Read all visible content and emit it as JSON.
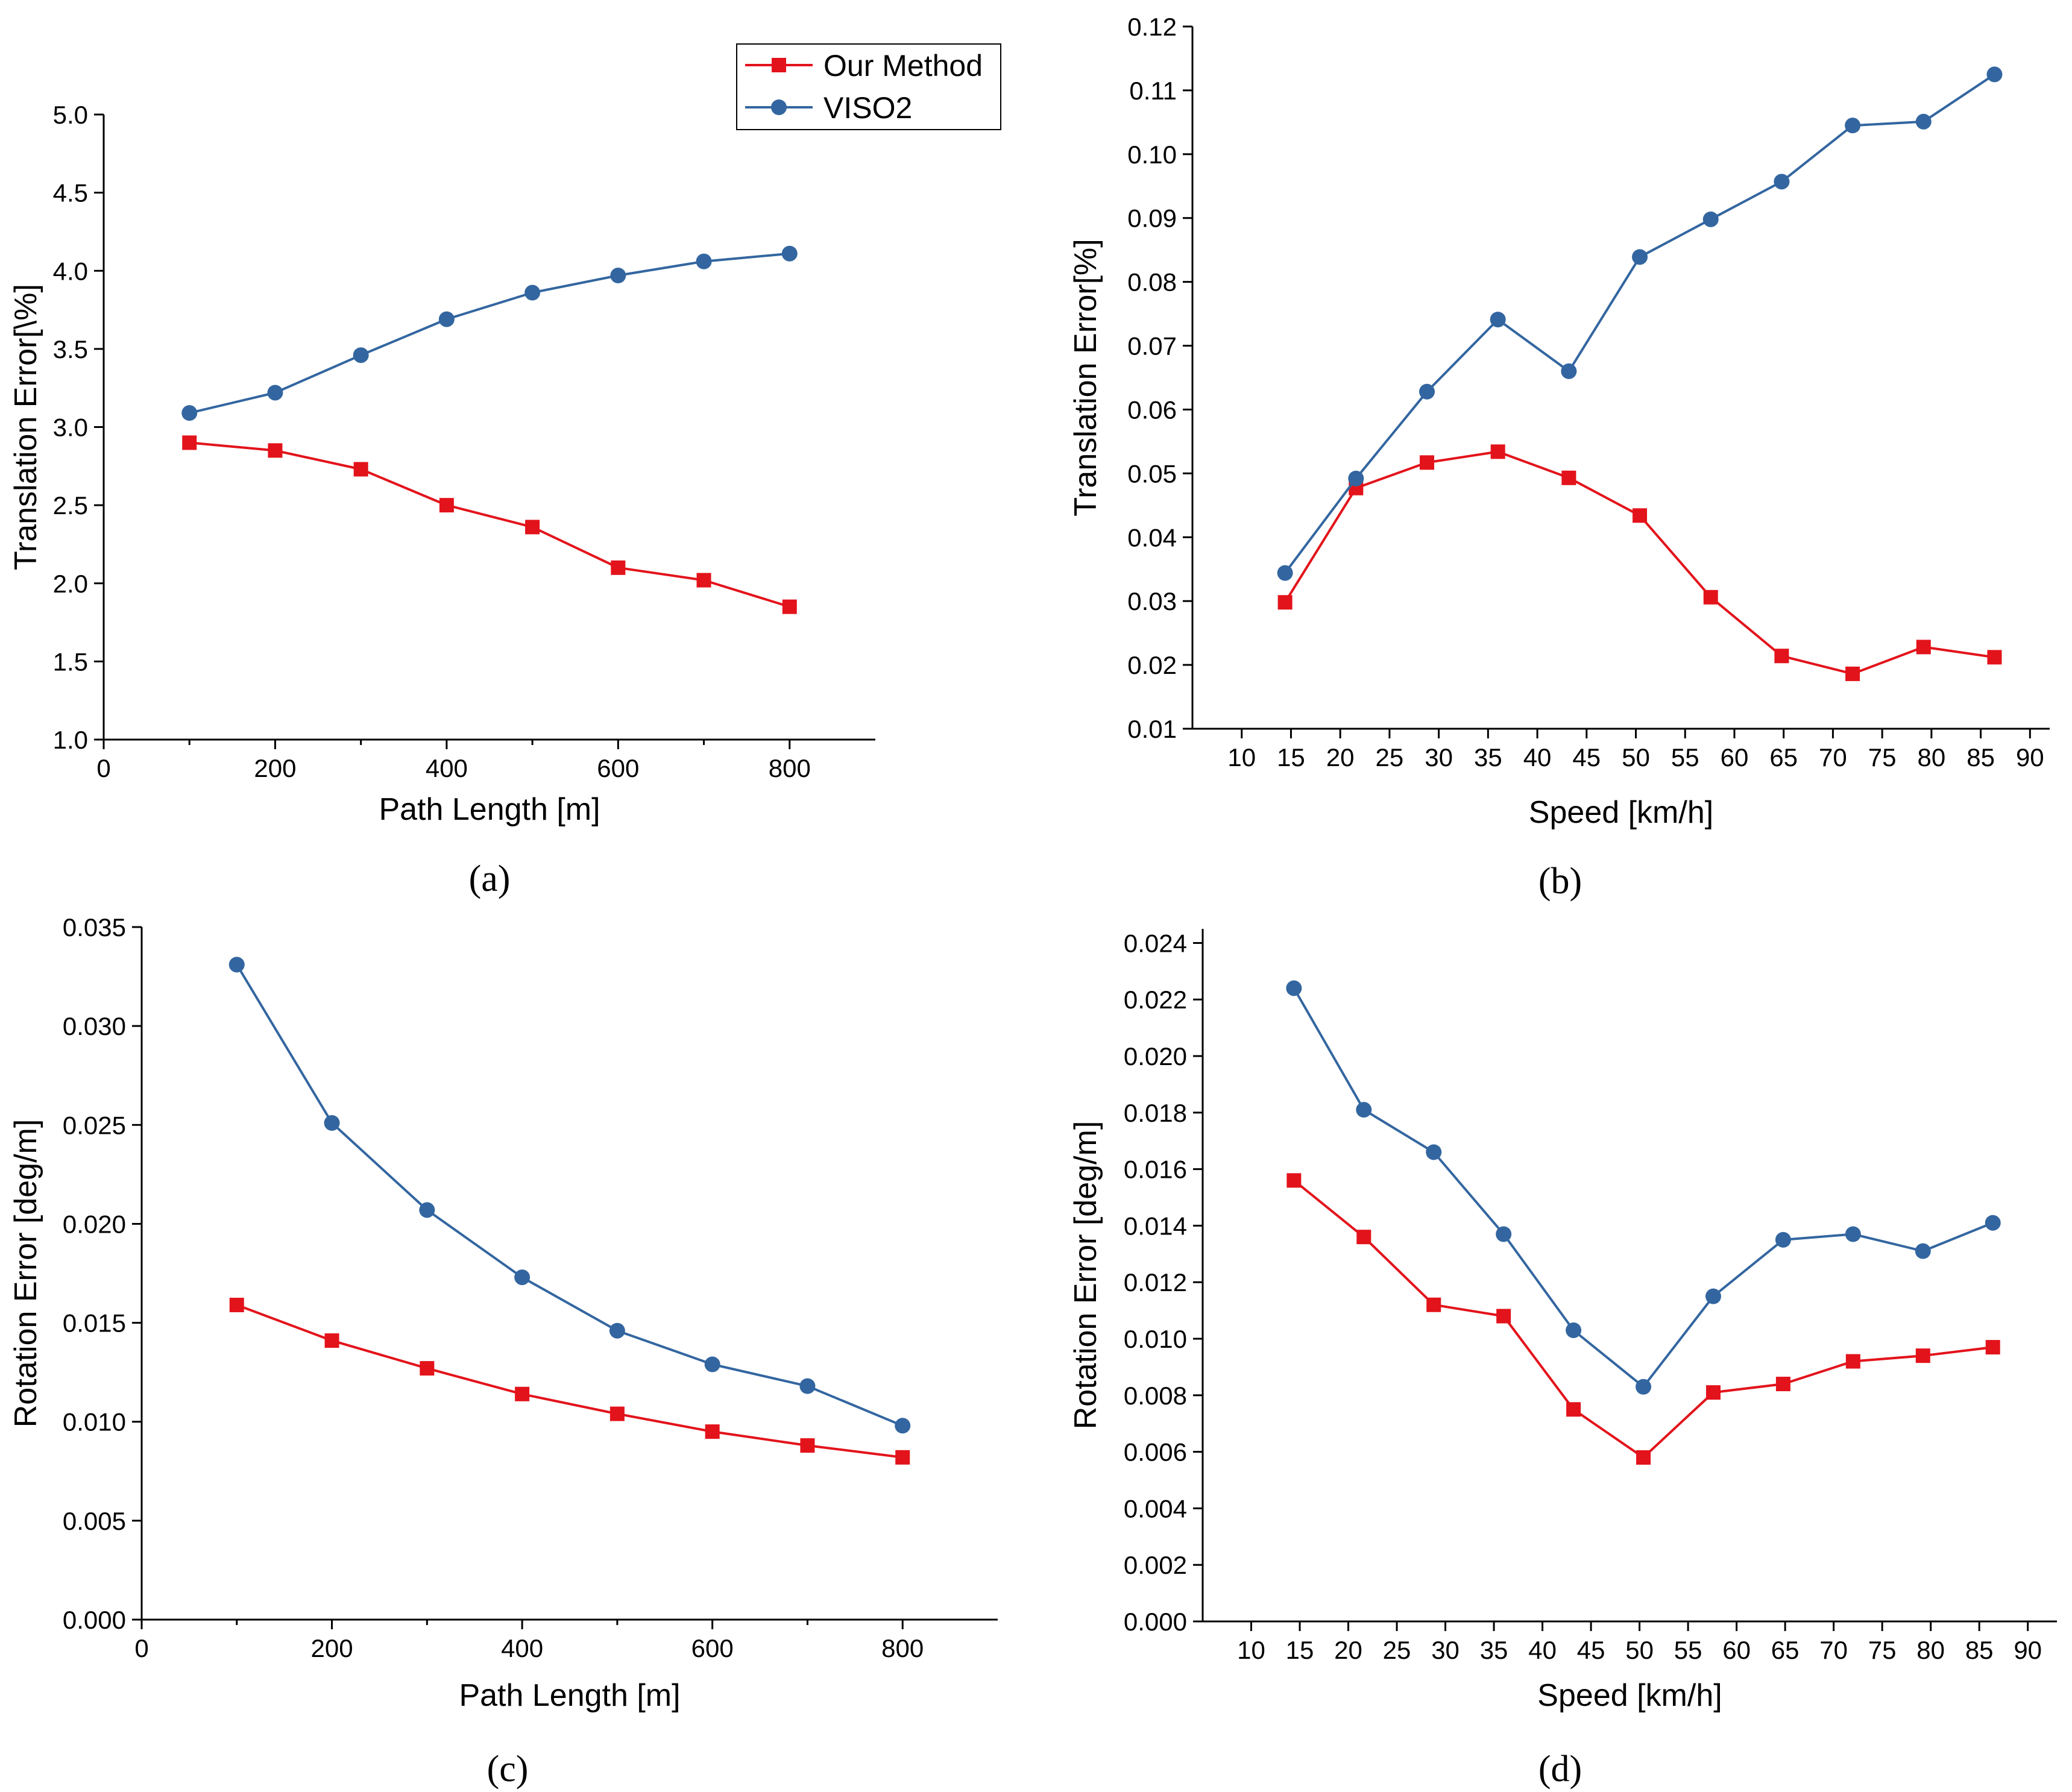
{
  "colors": {
    "series_ours": "#e3131b",
    "series_viso2": "#3366a0",
    "axis": "#000000"
  },
  "legend": {
    "entries": [
      "Our Method",
      "VISO2"
    ]
  },
  "chart_data": [
    {
      "panel": "a",
      "type": "line",
      "caption": "(a)",
      "xlabel": "Path Length [m]",
      "ylabel": "Translation Error[\\%]",
      "xlim": [
        0,
        900
      ],
      "ylim": [
        1.0,
        5.0
      ],
      "xticks": [
        0,
        200,
        400,
        600,
        800
      ],
      "xtick_labels": [
        "0",
        "200",
        "400",
        "600",
        "800"
      ],
      "xminor": [
        100,
        300,
        500,
        700
      ],
      "yticks": [
        1.0,
        1.5,
        2.0,
        2.5,
        3.0,
        3.5,
        4.0,
        4.5,
        5.0
      ],
      "ytick_labels": [
        "1.0",
        "1.5",
        "2.0",
        "2.5",
        "3.0",
        "3.5",
        "4.0",
        "4.5",
        "5.0"
      ],
      "x": [
        100,
        200,
        300,
        400,
        500,
        600,
        700,
        800
      ],
      "series": [
        {
          "name": "Our Method",
          "marker": "square",
          "values": [
            2.9,
            2.85,
            2.73,
            2.5,
            2.36,
            2.1,
            2.02,
            1.85
          ]
        },
        {
          "name": "VISO2",
          "marker": "circle",
          "values": [
            3.09,
            3.22,
            3.46,
            3.69,
            3.86,
            3.97,
            4.06,
            4.11
          ]
        }
      ]
    },
    {
      "panel": "b",
      "type": "line",
      "caption": "(b)",
      "xlabel": "Speed [km/h]",
      "ylabel": "Translation Error[%]",
      "xlim": [
        5,
        92
      ],
      "ylim": [
        0.01,
        0.12
      ],
      "xticks": [
        10,
        15,
        20,
        25,
        30,
        35,
        40,
        45,
        50,
        55,
        60,
        65,
        70,
        75,
        80,
        85,
        90
      ],
      "xtick_labels": [
        "10",
        "15",
        "20",
        "25",
        "30",
        "35",
        "40",
        "45",
        "50",
        "55",
        "60",
        "65",
        "70",
        "75",
        "80",
        "85",
        "90"
      ],
      "xminor": [],
      "yticks": [
        0.01,
        0.02,
        0.03,
        0.04,
        0.05,
        0.06,
        0.07,
        0.08,
        0.09,
        0.1,
        0.11,
        0.12
      ],
      "ytick_labels": [
        "0.01",
        "0.02",
        "0.03",
        "0.04",
        "0.05",
        "0.06",
        "0.07",
        "0.08",
        "0.09",
        "0.10",
        "0.11",
        "0.12"
      ],
      "x": [
        14.4,
        21.6,
        28.8,
        36.0,
        43.2,
        50.4,
        57.6,
        64.8,
        72.0,
        79.2,
        86.4
      ],
      "series": [
        {
          "name": "Our Method",
          "marker": "square",
          "values": [
            0.0298,
            0.0477,
            0.0517,
            0.0534,
            0.0493,
            0.0434,
            0.0306,
            0.0214,
            0.0186,
            0.0228,
            0.0212
          ]
        },
        {
          "name": "VISO2",
          "marker": "circle",
          "values": [
            0.0344,
            0.0492,
            0.0628,
            0.0741,
            0.066,
            0.0839,
            0.0898,
            0.0957,
            0.1045,
            0.1051,
            0.1125
          ]
        }
      ]
    },
    {
      "panel": "c",
      "type": "line",
      "caption": "(c)",
      "xlabel": "Path Length [m]",
      "ylabel": "Rotation Error [deg/m]",
      "xlim": [
        0,
        900
      ],
      "ylim": [
        0.0,
        0.035
      ],
      "xticks": [
        0,
        200,
        400,
        600,
        800
      ],
      "xtick_labels": [
        "0",
        "200",
        "400",
        "600",
        "800"
      ],
      "xminor": [
        100,
        300,
        500,
        700
      ],
      "yticks": [
        0.0,
        0.005,
        0.01,
        0.015,
        0.02,
        0.025,
        0.03,
        0.035
      ],
      "ytick_labels": [
        "0.000",
        "0.005",
        "0.010",
        "0.015",
        "0.020",
        "0.025",
        "0.030",
        "0.035"
      ],
      "x": [
        100,
        200,
        300,
        400,
        500,
        600,
        700,
        800
      ],
      "series": [
        {
          "name": "Our Method",
          "marker": "square",
          "values": [
            0.0159,
            0.0141,
            0.0127,
            0.0114,
            0.0104,
            0.0095,
            0.0088,
            0.0082
          ]
        },
        {
          "name": "VISO2",
          "marker": "circle",
          "values": [
            0.0331,
            0.0251,
            0.0207,
            0.0173,
            0.0146,
            0.0129,
            0.0118,
            0.0098
          ]
        }
      ]
    },
    {
      "panel": "d",
      "type": "line",
      "caption": "(d)",
      "xlabel": "Speed [km/h]",
      "ylabel": "Rotation Error [deg/m]",
      "xlim": [
        5,
        93
      ],
      "ylim": [
        0.0,
        0.0245
      ],
      "xticks": [
        10,
        15,
        20,
        25,
        30,
        35,
        40,
        45,
        50,
        55,
        60,
        65,
        70,
        75,
        80,
        85,
        90
      ],
      "xtick_labels": [
        "10",
        "15",
        "20",
        "25",
        "30",
        "35",
        "40",
        "45",
        "50",
        "55",
        "60",
        "65",
        "70",
        "75",
        "80",
        "85",
        "90"
      ],
      "xminor": [],
      "yticks": [
        0.0,
        0.002,
        0.004,
        0.006,
        0.008,
        0.01,
        0.012,
        0.014,
        0.016,
        0.018,
        0.02,
        0.022,
        0.024
      ],
      "ytick_labels": [
        "0.000",
        "0.002",
        "0.004",
        "0.006",
        "0.008",
        "0.010",
        "0.012",
        "0.014",
        "0.016",
        "0.018",
        "0.020",
        "0.022",
        "0.024"
      ],
      "x": [
        14.4,
        21.6,
        28.8,
        36.0,
        43.2,
        50.4,
        57.6,
        64.8,
        72.0,
        79.2,
        86.4
      ],
      "series": [
        {
          "name": "Our Method",
          "marker": "square",
          "values": [
            0.0156,
            0.0136,
            0.0112,
            0.0108,
            0.0075,
            0.0058,
            0.0081,
            0.0084,
            0.0092,
            0.0094,
            0.0097
          ]
        },
        {
          "name": "VISO2",
          "marker": "circle",
          "values": [
            0.0224,
            0.0181,
            0.0166,
            0.0137,
            0.0103,
            0.0083,
            0.0115,
            0.0135,
            0.0137,
            0.0131,
            0.0141
          ]
        }
      ]
    }
  ]
}
